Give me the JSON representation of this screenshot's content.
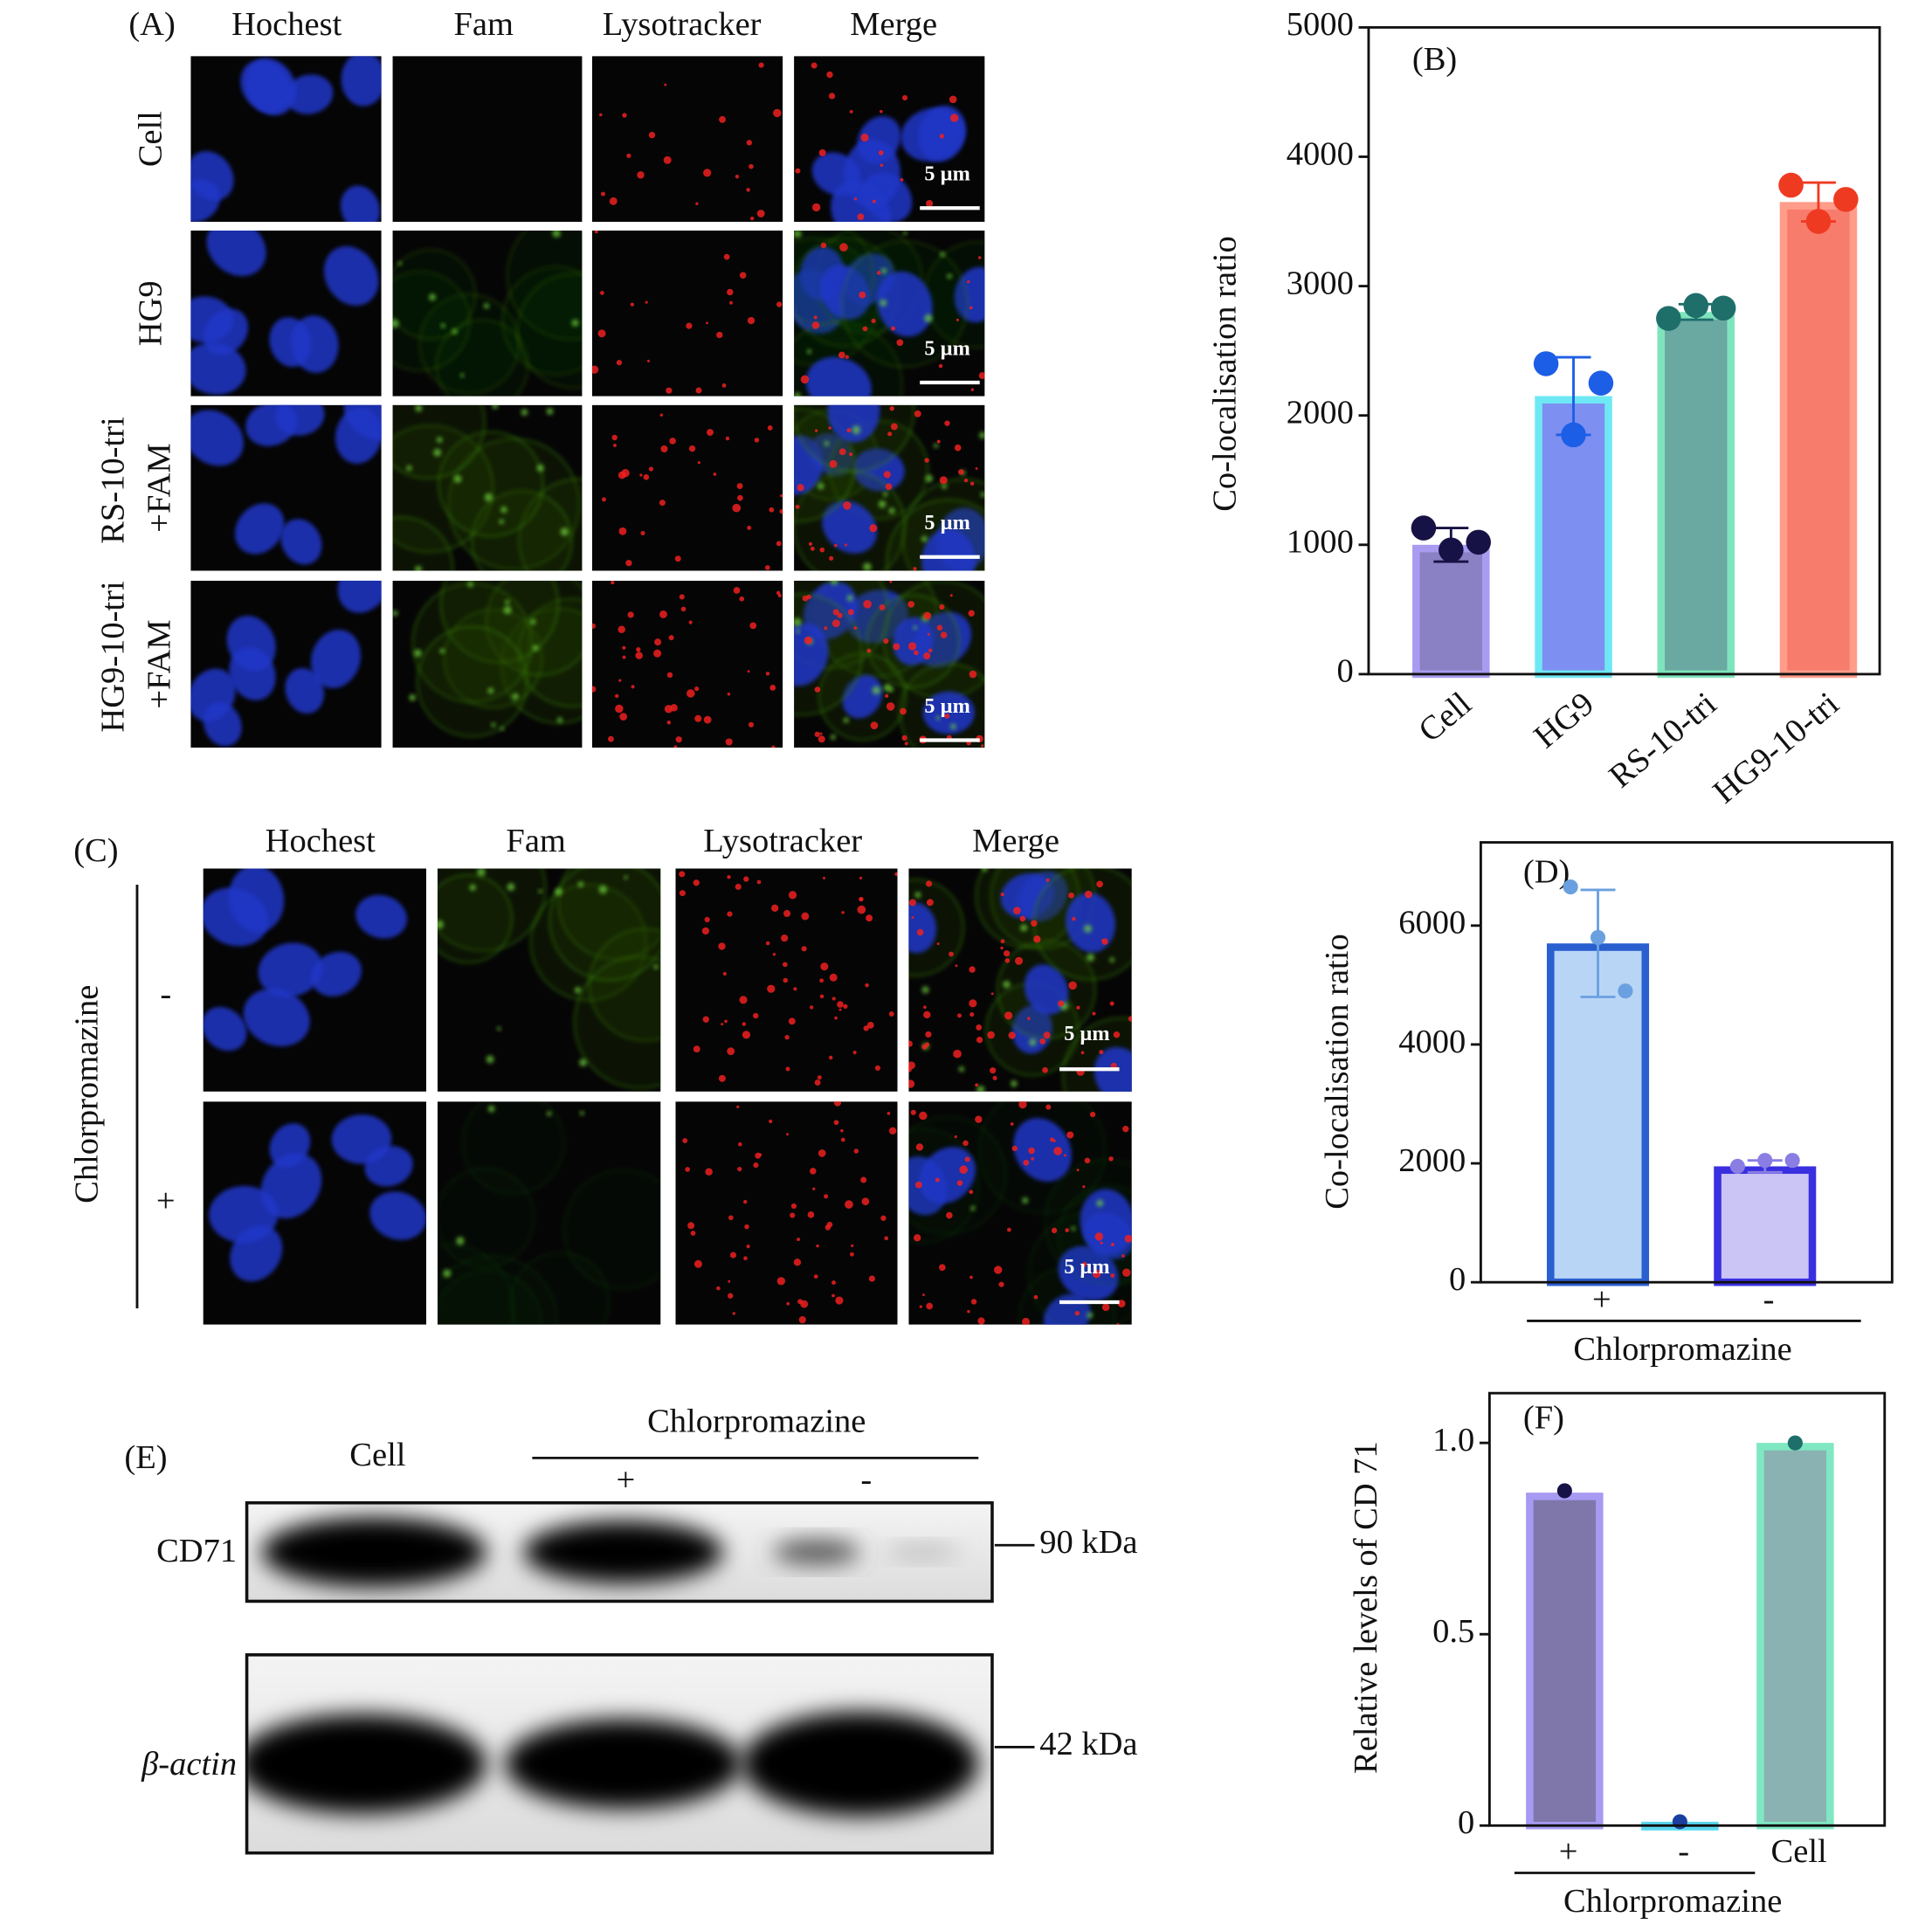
{
  "panel_a": {
    "label": "(A)",
    "columns": [
      "Hochest",
      "Fam",
      "Lysotracker",
      "Merge"
    ],
    "rows": [
      [
        "Cell"
      ],
      [
        "HG9"
      ],
      [
        "RS-10-tri",
        "+FAM"
      ],
      [
        "HG9-10-tri",
        "+FAM"
      ]
    ],
    "scale_bar": "5 µm"
  },
  "panel_c": {
    "label": "(C)",
    "columns": [
      "Hochest",
      "Fam",
      "Lysotracker",
      "Merge"
    ],
    "treatment": "Chlorpromazine",
    "rows": [
      "-",
      "+"
    ],
    "scale_bar": "5 µm"
  },
  "panel_e": {
    "label": "(E)",
    "control": "Cell",
    "treatment": "Chlorpromazine",
    "conditions": [
      "+",
      "-"
    ],
    "blots": [
      {
        "name": "CD71",
        "marker": "90 kDa"
      },
      {
        "name": "β-actin",
        "marker": "42 kDa"
      }
    ]
  },
  "chart_data": [
    {
      "type": "bar",
      "annotation": "(B)",
      "ylabel": "Co-localisation ratio",
      "categories": [
        "Cell",
        "HG9",
        "RS-10-tri",
        "HG9-10-tri"
      ],
      "values": [
        1000,
        2150,
        2800,
        3650
      ],
      "errors": [
        130,
        300,
        60,
        150
      ],
      "points": [
        [
          1130,
          960,
          1020
        ],
        [
          2400,
          1850,
          2250
        ],
        [
          2750,
          2850,
          2830
        ],
        [
          3780,
          3500,
          3670
        ]
      ],
      "colors": [
        "#8a80c4",
        "#7d8ff0",
        "#6aa8a2",
        "#f87c6c"
      ],
      "edge_colors": [
        "#a89bf0",
        "#6ee8f4",
        "#7fe4bc",
        "#ff9c8a"
      ],
      "point_colors": [
        "#161245",
        "#1d5ee6",
        "#1e6e6a",
        "#ef3a22"
      ],
      "ylim": [
        0,
        5000
      ],
      "yticks": [
        0,
        1000,
        2000,
        3000,
        4000,
        5000
      ]
    },
    {
      "type": "bar",
      "annotation": "(D)",
      "ylabel": "Co-localisation ratio",
      "xlabel": "Chlorpromazine",
      "categories": [
        "+",
        "-"
      ],
      "values": [
        5700,
        1950
      ],
      "errors": [
        900,
        100
      ],
      "points": [
        [
          6650,
          5800,
          4900
        ],
        [
          1950,
          2050,
          2050
        ]
      ],
      "colors": [
        "#b9d5f6",
        "#cbc5f6"
      ],
      "edge_colors": [
        "#2a5fd0",
        "#3a30e0"
      ],
      "point_colors": [
        "#6aa0e0",
        "#8a7ee4"
      ],
      "ylim": [
        0,
        7400
      ],
      "yticks": [
        0,
        2000,
        4000,
        6000
      ]
    },
    {
      "type": "bar",
      "annotation": "(F)",
      "ylabel": "Relative levels of CD 71",
      "xlabel": "Chlorpromazine",
      "categories": [
        "+",
        "-",
        "Cell"
      ],
      "values": [
        0.87,
        0.01,
        1.0
      ],
      "points": [
        [
          0.875
        ],
        [
          0.01
        ],
        [
          1.0
        ]
      ],
      "colors": [
        "#7f77aa",
        "#2a9ad8",
        "#8ab2b2"
      ],
      "edge_colors": [
        "#a69af2",
        "#5ad8f0",
        "#7fe8c2"
      ],
      "point_colors": [
        "#161245",
        "#1a3fa0",
        "#1e6e6a"
      ],
      "ylim": [
        0,
        1.13
      ],
      "yticks": [
        0,
        0.5,
        {
          "value": 1,
          "label": "1.0"
        }
      ]
    }
  ]
}
